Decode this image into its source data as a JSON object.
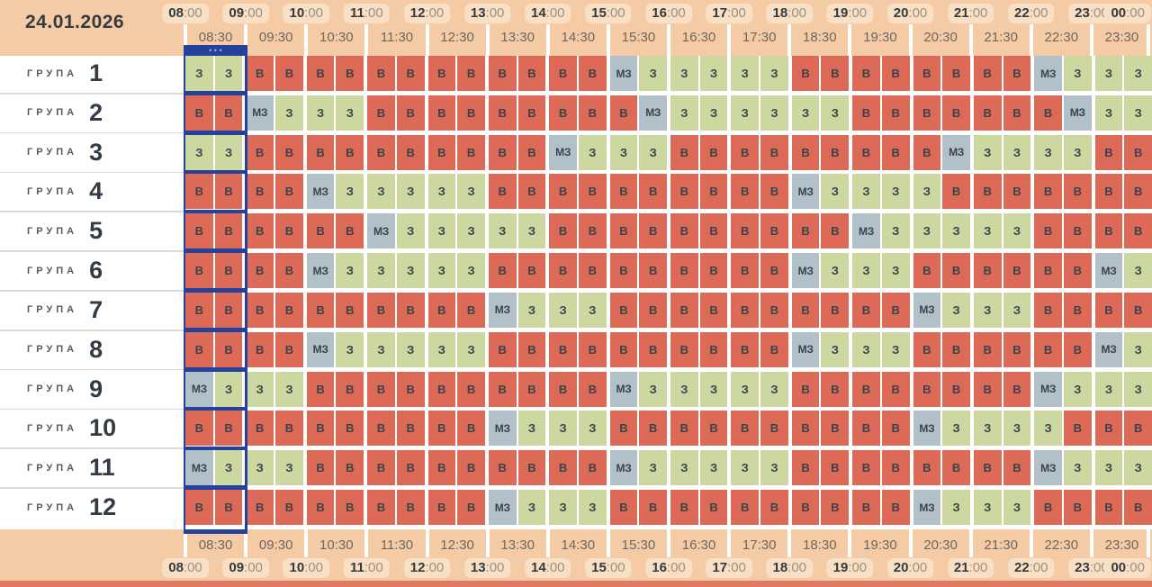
{
  "header": {
    "date": "24.01.2026"
  },
  "timeline": {
    "hours": [
      "08:00",
      "09:00",
      "10:00",
      "11:00",
      "12:00",
      "13:00",
      "14:00",
      "15:00",
      "16:00",
      "17:00",
      "18:00",
      "19:00",
      "20:00",
      "21:00",
      "22:00",
      "23:00",
      "00:00"
    ],
    "half_hours": [
      "08:30",
      "09:30",
      "10:30",
      "11:30",
      "12:30",
      "13:30",
      "14:30",
      "15:30",
      "16:30",
      "17:30",
      "18:30",
      "19:30",
      "20:30",
      "21:30",
      "22:30",
      "23:30"
    ]
  },
  "current_selection": {
    "slot": "08:00-09:00",
    "indicator_dots": "•••"
  },
  "statuses": {
    "off": "В",
    "on": "З",
    "maybe": "МЗ"
  },
  "colors": {
    "off": "#dc6a57",
    "on": "#cdd8a1",
    "maybe": "#b2c0ca",
    "highlight": "#24419b",
    "header_bg": "#f5cba6"
  },
  "groups": [
    {
      "label": "ГРУПА",
      "number": "1",
      "slots": [
        "З",
        "З",
        "В",
        "В",
        "В",
        "В",
        "В",
        "В",
        "В",
        "В",
        "В",
        "В",
        "В",
        "В",
        "МЗ",
        "З",
        "З",
        "З",
        "З",
        "З",
        "В",
        "В",
        "В",
        "В",
        "В",
        "В",
        "В",
        "В",
        "МЗ",
        "З",
        "З",
        "З"
      ]
    },
    {
      "label": "ГРУПА",
      "number": "2",
      "slots": [
        "В",
        "В",
        "МЗ",
        "З",
        "З",
        "З",
        "В",
        "В",
        "В",
        "В",
        "В",
        "В",
        "В",
        "В",
        "В",
        "МЗ",
        "З",
        "З",
        "З",
        "З",
        "З",
        "З",
        "В",
        "В",
        "В",
        "В",
        "В",
        "В",
        "В",
        "МЗ",
        "З",
        "З"
      ]
    },
    {
      "label": "ГРУПА",
      "number": "3",
      "slots": [
        "З",
        "З",
        "В",
        "В",
        "В",
        "В",
        "В",
        "В",
        "В",
        "В",
        "В",
        "В",
        "МЗ",
        "З",
        "З",
        "З",
        "В",
        "В",
        "В",
        "В",
        "В",
        "В",
        "В",
        "В",
        "В",
        "МЗ",
        "З",
        "З",
        "З",
        "З",
        "В",
        "В"
      ]
    },
    {
      "label": "ГРУПА",
      "number": "4",
      "slots": [
        "В",
        "В",
        "В",
        "В",
        "МЗ",
        "З",
        "З",
        "З",
        "З",
        "З",
        "В",
        "В",
        "В",
        "В",
        "В",
        "В",
        "В",
        "В",
        "В",
        "В",
        "МЗ",
        "З",
        "З",
        "З",
        "З",
        "В",
        "В",
        "В",
        "В",
        "В",
        "В",
        "В"
      ]
    },
    {
      "label": "ГРУПА",
      "number": "5",
      "slots": [
        "В",
        "В",
        "В",
        "В",
        "В",
        "В",
        "МЗ",
        "З",
        "З",
        "З",
        "З",
        "З",
        "В",
        "В",
        "В",
        "В",
        "В",
        "В",
        "В",
        "В",
        "В",
        "В",
        "МЗ",
        "З",
        "З",
        "З",
        "З",
        "З",
        "В",
        "В",
        "В",
        "В"
      ]
    },
    {
      "label": "ГРУПА",
      "number": "6",
      "slots": [
        "В",
        "В",
        "В",
        "В",
        "МЗ",
        "З",
        "З",
        "З",
        "З",
        "З",
        "В",
        "В",
        "В",
        "В",
        "В",
        "В",
        "В",
        "В",
        "В",
        "В",
        "МЗ",
        "З",
        "З",
        "З",
        "В",
        "В",
        "В",
        "В",
        "В",
        "В",
        "МЗ",
        "З"
      ]
    },
    {
      "label": "ГРУПА",
      "number": "7",
      "slots": [
        "В",
        "В",
        "В",
        "В",
        "В",
        "В",
        "В",
        "В",
        "В",
        "В",
        "МЗ",
        "З",
        "З",
        "З",
        "В",
        "В",
        "В",
        "В",
        "В",
        "В",
        "В",
        "В",
        "В",
        "В",
        "МЗ",
        "З",
        "З",
        "З",
        "В",
        "В",
        "В",
        "В"
      ]
    },
    {
      "label": "ГРУПА",
      "number": "8",
      "slots": [
        "В",
        "В",
        "В",
        "В",
        "МЗ",
        "З",
        "З",
        "З",
        "З",
        "З",
        "В",
        "В",
        "В",
        "В",
        "В",
        "В",
        "В",
        "В",
        "В",
        "В",
        "МЗ",
        "З",
        "З",
        "З",
        "В",
        "В",
        "В",
        "В",
        "В",
        "В",
        "МЗ",
        "З"
      ]
    },
    {
      "label": "ГРУПА",
      "number": "9",
      "slots": [
        "МЗ",
        "З",
        "З",
        "З",
        "В",
        "В",
        "В",
        "В",
        "В",
        "В",
        "В",
        "В",
        "В",
        "В",
        "МЗ",
        "З",
        "З",
        "З",
        "З",
        "З",
        "В",
        "В",
        "В",
        "В",
        "В",
        "В",
        "В",
        "В",
        "МЗ",
        "З",
        "З",
        "З"
      ]
    },
    {
      "label": "ГРУПА",
      "number": "10",
      "slots": [
        "В",
        "В",
        "В",
        "В",
        "В",
        "В",
        "В",
        "В",
        "В",
        "В",
        "МЗ",
        "З",
        "З",
        "З",
        "В",
        "В",
        "В",
        "В",
        "В",
        "В",
        "В",
        "В",
        "В",
        "В",
        "МЗ",
        "З",
        "З",
        "З",
        "З",
        "В",
        "В",
        "В"
      ]
    },
    {
      "label": "ГРУПА",
      "number": "11",
      "slots": [
        "МЗ",
        "З",
        "З",
        "З",
        "В",
        "В",
        "В",
        "В",
        "В",
        "В",
        "В",
        "В",
        "В",
        "В",
        "МЗ",
        "З",
        "З",
        "З",
        "З",
        "З",
        "В",
        "В",
        "В",
        "В",
        "В",
        "В",
        "В",
        "В",
        "МЗ",
        "З",
        "З",
        "З"
      ]
    },
    {
      "label": "ГРУПА",
      "number": "12",
      "slots": [
        "В",
        "В",
        "В",
        "В",
        "В",
        "В",
        "В",
        "В",
        "В",
        "В",
        "МЗ",
        "З",
        "З",
        "З",
        "В",
        "В",
        "В",
        "В",
        "В",
        "В",
        "В",
        "В",
        "В",
        "В",
        "МЗ",
        "З",
        "З",
        "З",
        "В",
        "В",
        "В",
        "В"
      ]
    }
  ]
}
